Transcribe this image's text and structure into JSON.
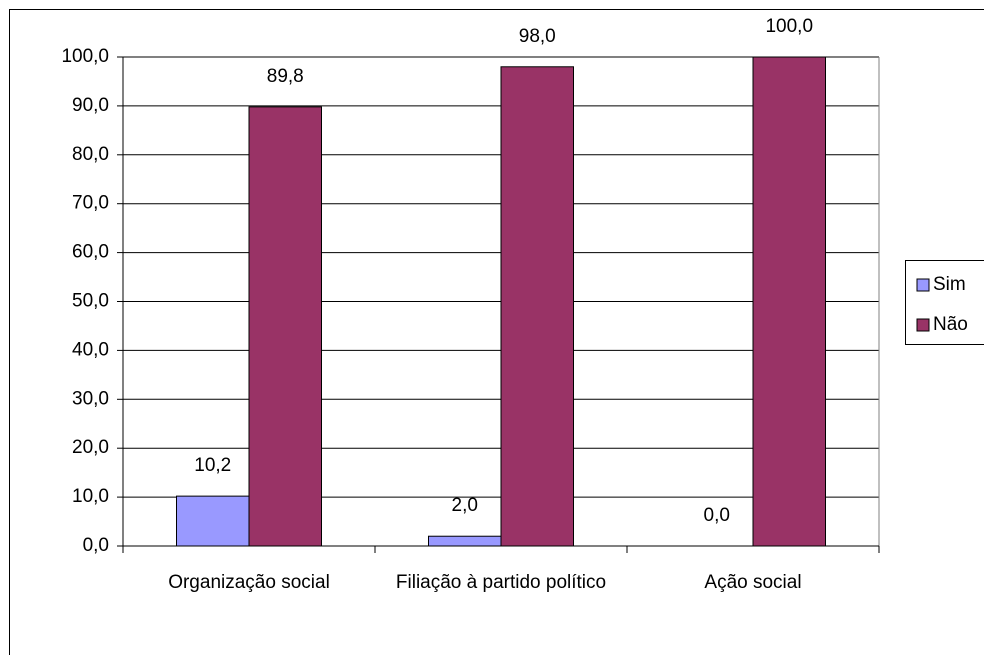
{
  "chart_data": {
    "type": "bar",
    "categories": [
      "Organização social",
      "Filiação à partido político",
      "Ação social"
    ],
    "series": [
      {
        "name": "Sim",
        "color": "#9999ff",
        "values": [
          10.2,
          2.0,
          0.0
        ],
        "value_labels": [
          "10,2",
          "2,0",
          "0,0"
        ]
      },
      {
        "name": "Não",
        "color": "#993366",
        "values": [
          89.8,
          98.0,
          100.0
        ],
        "value_labels": [
          "89,8",
          "98,0",
          "100,0"
        ]
      }
    ],
    "ylim": [
      0,
      100
    ],
    "yticks": [
      {
        "value": 0,
        "label": "0,0"
      },
      {
        "value": 10,
        "label": "10,0"
      },
      {
        "value": 20,
        "label": "20,0"
      },
      {
        "value": 30,
        "label": "30,0"
      },
      {
        "value": 40,
        "label": "40,0"
      },
      {
        "value": 50,
        "label": "50,0"
      },
      {
        "value": 60,
        "label": "60,0"
      },
      {
        "value": 70,
        "label": "70,0"
      },
      {
        "value": 80,
        "label": "80,0"
      },
      {
        "value": 90,
        "label": "90,0"
      },
      {
        "value": 100,
        "label": "100,0"
      }
    ],
    "grid": true,
    "legend": "right"
  }
}
